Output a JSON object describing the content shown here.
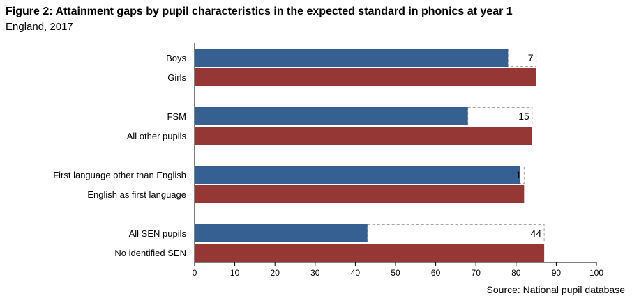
{
  "title": "Figure 2: Attainment gaps by pupil characteristics in the expected standard in phonics at year 1",
  "subtitle": "England, 2017",
  "source": "Source: National pupil database",
  "colors": {
    "primary": "#376092",
    "comparison": "#953735",
    "gap_border": "#a6a6a6",
    "axis": "#000000"
  },
  "chart_data": {
    "type": "bar",
    "orientation": "horizontal",
    "xlim": [
      0,
      100
    ],
    "xticks": [
      "0",
      "10",
      "20",
      "30",
      "40",
      "50",
      "60",
      "70",
      "80",
      "90",
      "100"
    ],
    "groups": [
      {
        "label": "Boys",
        "value": 78,
        "comparison_label": "Girls",
        "comparison_value": 85,
        "gap": "7"
      },
      {
        "label": "FSM",
        "value": 68,
        "comparison_label": "All other pupils",
        "comparison_value": 84,
        "gap": "15"
      },
      {
        "label": "First language other than English",
        "value": 81,
        "comparison_label": "English as first language",
        "comparison_value": 82,
        "gap": "1"
      },
      {
        "label": "All SEN pupils",
        "value": 43,
        "comparison_label": "No identified SEN",
        "comparison_value": 87,
        "gap": "44"
      }
    ]
  }
}
